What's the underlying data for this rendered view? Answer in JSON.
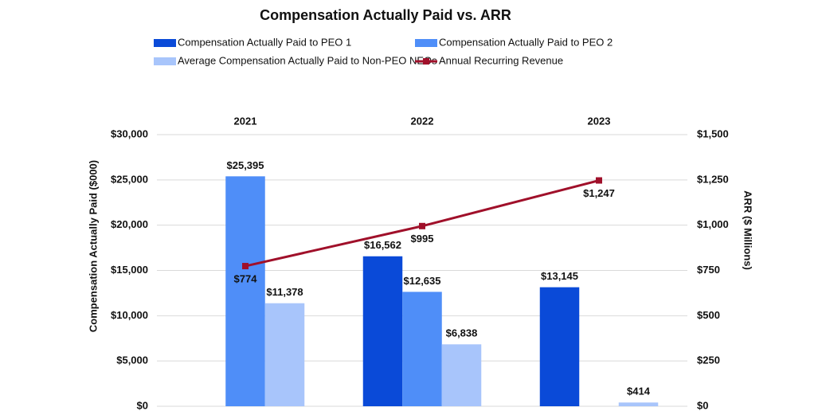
{
  "chart_data": {
    "type": "bar",
    "title": "Compensation Actually Paid vs. ARR",
    "ylabel": "Compensation Actually Paid ($000)",
    "y2label": "ARR ($ Millions)",
    "categories": [
      "2021",
      "2022",
      "2023"
    ],
    "series": [
      {
        "name": "Compensation Actually Paid to PEO 1",
        "color": "#0a4ad8",
        "values": [
          null,
          16562,
          13145
        ],
        "value_labels": [
          null,
          "$16,562",
          "$13,145"
        ]
      },
      {
        "name": "Compensation Actually Paid to PEO 2",
        "color": "#4f8ef8",
        "values": [
          25395,
          12635,
          null
        ],
        "value_labels": [
          "$25,395",
          "$12,635",
          null
        ]
      },
      {
        "name": "Average Compensation Actually Paid to Non-PEO NEOs",
        "color": "#a8c5fb",
        "values": [
          11378,
          6838,
          414
        ],
        "value_labels": [
          "$11,378",
          "$6,838",
          "$414"
        ]
      },
      {
        "name": "Annual Recurring Revenue",
        "color": "#a0102a",
        "type": "line",
        "axis": "y2",
        "values": [
          774,
          995,
          1247
        ],
        "value_labels": [
          "$774",
          "$995",
          "$1,247"
        ]
      }
    ],
    "ylim": [
      0,
      30000
    ],
    "yticks": [
      {
        "value": 0,
        "label": "$0"
      },
      {
        "value": 5000,
        "label": "$5,000"
      },
      {
        "value": 10000,
        "label": "$10,000"
      },
      {
        "value": 15000,
        "label": "$15,000"
      },
      {
        "value": 20000,
        "label": "$20,000"
      },
      {
        "value": 25000,
        "label": "$25,000"
      },
      {
        "value": 30000,
        "label": "$30,000"
      }
    ],
    "y2lim": [
      0,
      1500
    ],
    "y2ticks": [
      {
        "value": 0,
        "label": "$0"
      },
      {
        "value": 250,
        "label": "$250"
      },
      {
        "value": 500,
        "label": "$500"
      },
      {
        "value": 750,
        "label": "$750"
      },
      {
        "value": 1000,
        "label": "$1,000"
      },
      {
        "value": 1250,
        "label": "$1,250"
      },
      {
        "value": 1500,
        "label": "$1,500"
      }
    ],
    "grid": true
  }
}
